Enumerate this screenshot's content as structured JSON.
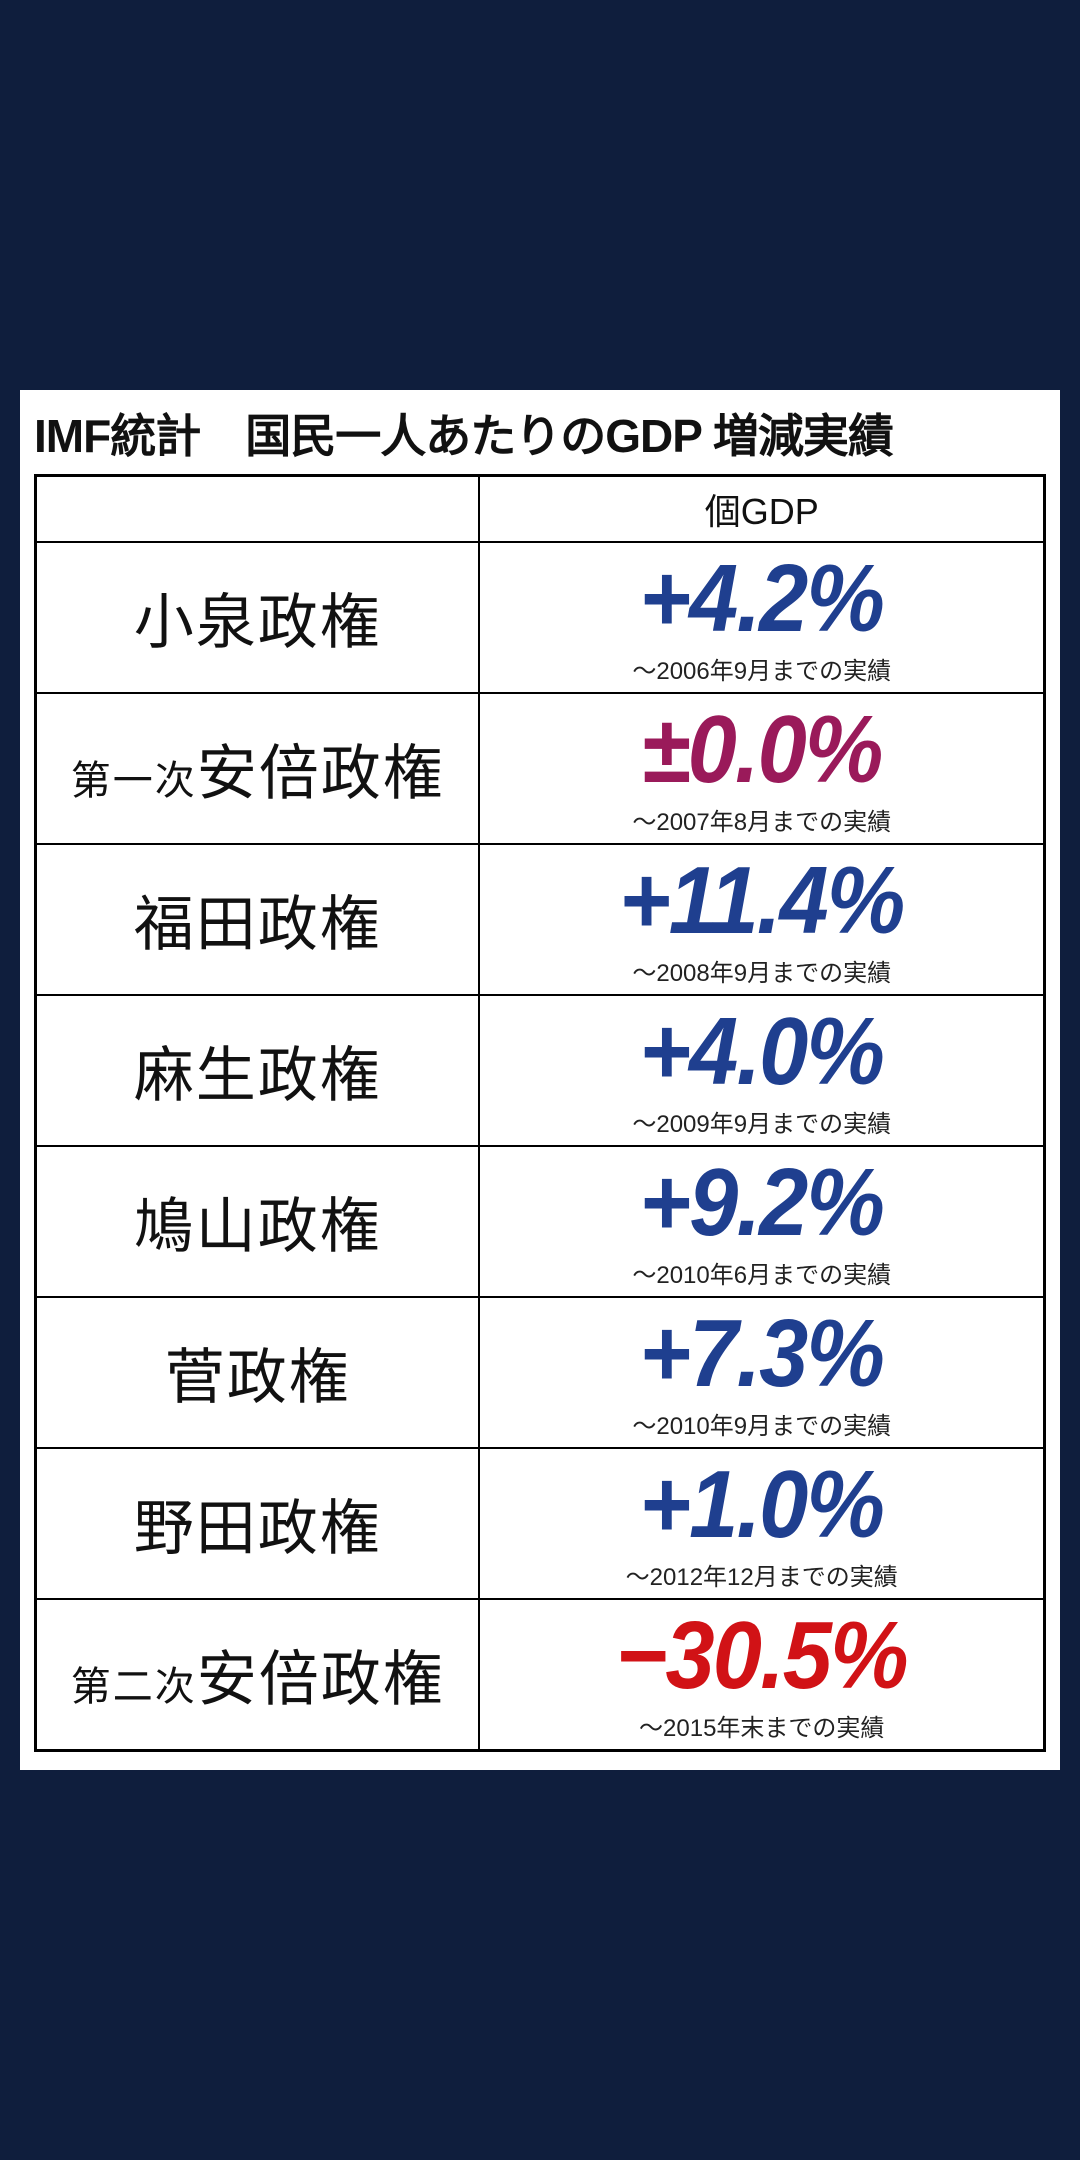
{
  "title": "IMF統計　国民一人あたりのGDP 増減実績",
  "header": {
    "col1": "",
    "col2": "個GDP"
  },
  "colors": {
    "positive": "#1f3f8f",
    "neutral": "#9a1a5a",
    "negative": "#d11216",
    "page_bg": "#0f1e3d",
    "card_bg": "#ffffff",
    "border": "#000000"
  },
  "rows": [
    {
      "prefix": "",
      "name": "小泉政権",
      "value": "+4.2%",
      "color": "positive",
      "note": "～2006年9月までの実績"
    },
    {
      "prefix": "第一次",
      "name": "安倍政権",
      "value": "±0.0%",
      "color": "neutral",
      "note": "～2007年8月までの実績"
    },
    {
      "prefix": "",
      "name": "福田政権",
      "value": "+11.4%",
      "color": "positive",
      "note": "～2008年9月までの実績"
    },
    {
      "prefix": "",
      "name": "麻生政権",
      "value": "+4.0%",
      "color": "positive",
      "note": "～2009年9月までの実績"
    },
    {
      "prefix": "",
      "name": "鳩山政権",
      "value": "+9.2%",
      "color": "positive",
      "note": "～2010年6月までの実績"
    },
    {
      "prefix": "",
      "name": "菅政権",
      "value": "+7.3%",
      "color": "positive",
      "note": "～2010年9月までの実績"
    },
    {
      "prefix": "",
      "name": "野田政権",
      "value": "+1.0%",
      "color": "positive",
      "note": "～2012年12月までの実績"
    },
    {
      "prefix": "第二次",
      "name": "安倍政権",
      "value": "−30.5%",
      "color": "negative",
      "note": "～2015年末までの実績"
    }
  ],
  "value_font_size": 96,
  "name_font_size": 60,
  "prefix_font_size": 40,
  "note_font_size": 24
}
